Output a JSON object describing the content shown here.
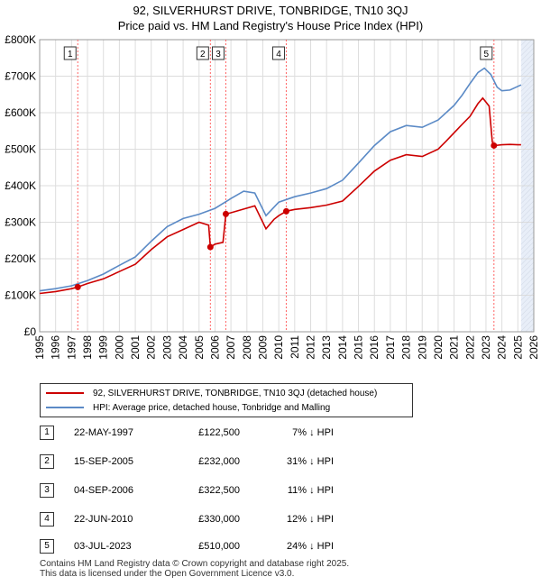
{
  "chart_data": {
    "type": "line",
    "title": "92, SILVERHURST DRIVE, TONBRIDGE, TN10 3QJ",
    "subtitle": "Price paid vs. HM Land Registry's House Price Index (HPI)",
    "xlim": [
      1995,
      2026
    ],
    "ylim": [
      0,
      800000
    ],
    "x_ticks": [
      1995,
      1996,
      1997,
      1998,
      1999,
      2000,
      2001,
      2002,
      2003,
      2004,
      2005,
      2006,
      2007,
      2008,
      2009,
      2010,
      2011,
      2012,
      2013,
      2014,
      2015,
      2016,
      2017,
      2018,
      2019,
      2020,
      2021,
      2022,
      2023,
      2024,
      2025,
      2026
    ],
    "x_tick_labels": [
      "1995",
      "1996",
      "1997",
      "1998",
      "1999",
      "2000",
      "2001",
      "2002",
      "2003",
      "2004",
      "2005",
      "2006",
      "2007",
      "2008",
      "2009",
      "2010",
      "2011",
      "2012",
      "2013",
      "2014",
      "2015",
      "2016",
      "2017",
      "2018",
      "2019",
      "2020",
      "2021",
      "2022",
      "2023",
      "2024",
      "2025",
      "2026"
    ],
    "y_ticks": [
      0,
      100000,
      200000,
      300000,
      400000,
      500000,
      600000,
      700000,
      800000
    ],
    "y_tick_labels": [
      "£0",
      "£100K",
      "£200K",
      "£300K",
      "£400K",
      "£500K",
      "£600K",
      "£700K",
      "£800K"
    ],
    "forecast_start": 2025.2,
    "series": [
      {
        "name": "92, SILVERHURST DRIVE, TONBRIDGE, TN10 3QJ (detached house)",
        "color": "#cc0000",
        "x": [
          1995.0,
          1996.0,
          1997.0,
          1997.39,
          1998.0,
          1999.0,
          2000.0,
          2001.0,
          2002.0,
          2003.0,
          2004.0,
          2005.0,
          2005.6,
          2005.71,
          2006.0,
          2006.5,
          2006.68,
          2007.0,
          2007.8,
          2008.5,
          2009.2,
          2009.7,
          2010.0,
          2010.47,
          2011.0,
          2012.0,
          2013.0,
          2014.0,
          2015.0,
          2016.0,
          2017.0,
          2018.0,
          2019.0,
          2020.0,
          2020.5,
          2021.0,
          2021.5,
          2022.0,
          2022.5,
          2022.8,
          2023.2,
          2023.4,
          2023.5,
          2024.0,
          2024.5,
          2025.0,
          2025.2
        ],
        "values": [
          105000,
          110000,
          118000,
          122500,
          132000,
          145000,
          165000,
          185000,
          225000,
          260000,
          280000,
          300000,
          292000,
          232000,
          240000,
          245000,
          322500,
          326000,
          336000,
          345000,
          282000,
          308000,
          318000,
          330000,
          335000,
          340000,
          347000,
          358000,
          398000,
          440000,
          470000,
          485000,
          480000,
          500000,
          522000,
          545000,
          568000,
          590000,
          625000,
          640000,
          618000,
          520000,
          510000,
          512000,
          513000,
          512000,
          512000
        ]
      },
      {
        "name": "HPI: Average price, detached house, Tonbridge and Malling",
        "color": "#5b8ac6",
        "x": [
          1995.0,
          1996.0,
          1997.0,
          1998.0,
          1999.0,
          2000.0,
          2001.0,
          2002.0,
          2003.0,
          2004.0,
          2005.0,
          2006.0,
          2007.0,
          2007.8,
          2008.5,
          2009.2,
          2010.0,
          2011.0,
          2012.0,
          2013.0,
          2014.0,
          2015.0,
          2016.0,
          2017.0,
          2018.0,
          2019.0,
          2020.0,
          2021.0,
          2021.5,
          2022.0,
          2022.5,
          2022.9,
          2023.3,
          2023.7,
          2024.0,
          2024.5,
          2025.0,
          2025.2
        ],
        "values": [
          112000,
          118000,
          126000,
          140000,
          158000,
          182000,
          205000,
          248000,
          288000,
          310000,
          322000,
          338000,
          365000,
          385000,
          380000,
          318000,
          355000,
          370000,
          380000,
          392000,
          415000,
          462000,
          510000,
          548000,
          565000,
          560000,
          580000,
          620000,
          648000,
          680000,
          710000,
          722000,
          705000,
          670000,
          660000,
          662000,
          672000,
          676000
        ]
      }
    ],
    "sales": [
      {
        "label": "1",
        "x": 1997.39,
        "value": 122500
      },
      {
        "label": "2",
        "x": 2005.71,
        "value": 232000
      },
      {
        "label": "3",
        "x": 2006.68,
        "value": 322500
      },
      {
        "label": "4",
        "x": 2010.47,
        "value": 330000
      },
      {
        "label": "5",
        "x": 2023.5,
        "value": 510000
      }
    ]
  },
  "legend": {
    "property": "92, SILVERHURST DRIVE, TONBRIDGE, TN10 3QJ (detached house)",
    "hpi": "HPI: Average price, detached house, Tonbridge and Malling"
  },
  "transactions": [
    {
      "num": "1",
      "date": "22-MAY-1997",
      "price": "£122,500",
      "hpi": "7% ↓ HPI"
    },
    {
      "num": "2",
      "date": "15-SEP-2005",
      "price": "£232,000",
      "hpi": "31% ↓ HPI"
    },
    {
      "num": "3",
      "date": "04-SEP-2006",
      "price": "£322,500",
      "hpi": "11% ↓ HPI"
    },
    {
      "num": "4",
      "date": "22-JUN-2010",
      "price": "£330,000",
      "hpi": "12% ↓ HPI"
    },
    {
      "num": "5",
      "date": "03-JUL-2023",
      "price": "£510,000",
      "hpi": "24% ↓ HPI"
    }
  ],
  "footer": {
    "line1": "Contains HM Land Registry data © Crown copyright and database right 2025.",
    "line2": "This data is licensed under the Open Government Licence v3.0."
  }
}
